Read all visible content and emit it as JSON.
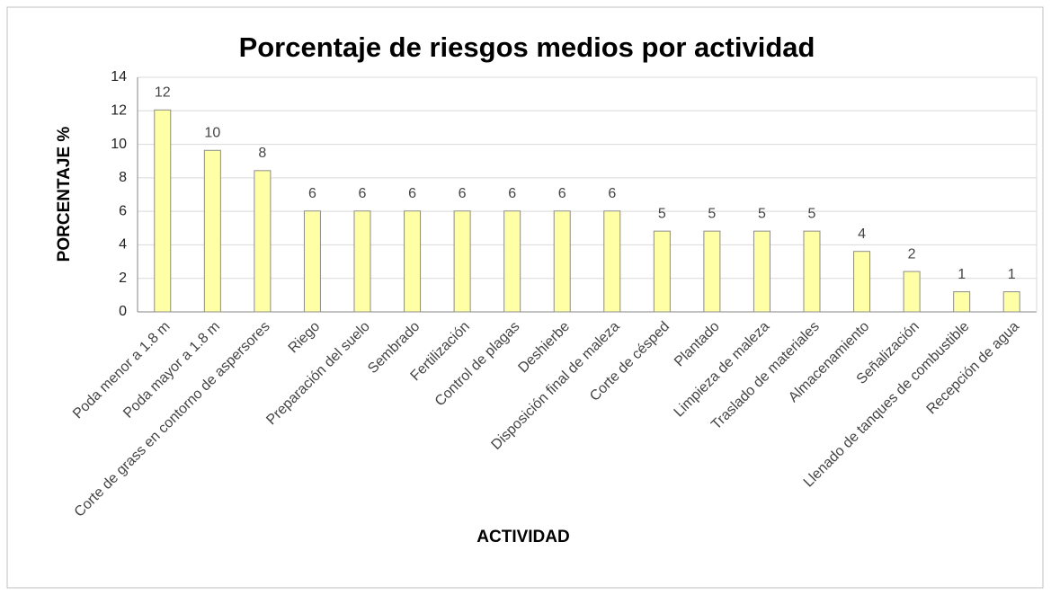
{
  "chart_data": {
    "type": "bar",
    "title": "Porcentaje de riesgos medios por actividad",
    "xlabel": "ACTIVIDAD",
    "ylabel": "PORCENTAJE %",
    "categories": [
      "Poda menor a 1.8 m",
      "Poda mayor a 1.8 m",
      "Corte de grass en contorno de aspersores",
      "Riego",
      "Preparación del suelo",
      "Sembrado",
      "Fertilización",
      "Control de plagas",
      "Deshierbe",
      "Disposición final de maleza",
      "Corte de césped",
      "Plantado",
      "Limpieza de maleza",
      "Traslado de materiales",
      "Almacenamiento",
      "Señalización",
      "Llenado de tanques de combustible",
      "Recepción de agua"
    ],
    "values": [
      12.05,
      9.64,
      8.43,
      6.02,
      6.02,
      6.02,
      6.02,
      6.02,
      6.02,
      6.02,
      4.82,
      4.82,
      4.82,
      4.82,
      3.61,
      2.41,
      1.2,
      1.2
    ],
    "value_labels": [
      "12",
      "10",
      "8",
      "6",
      "6",
      "6",
      "6",
      "6",
      "6",
      "6",
      "5",
      "5",
      "5",
      "5",
      "4",
      "2",
      "1",
      "1"
    ],
    "color": "#ffffa6",
    "ylim": [
      0,
      14
    ],
    "yticks": [
      0,
      2,
      4,
      6,
      8,
      10,
      12,
      14
    ],
    "grid": true
  }
}
